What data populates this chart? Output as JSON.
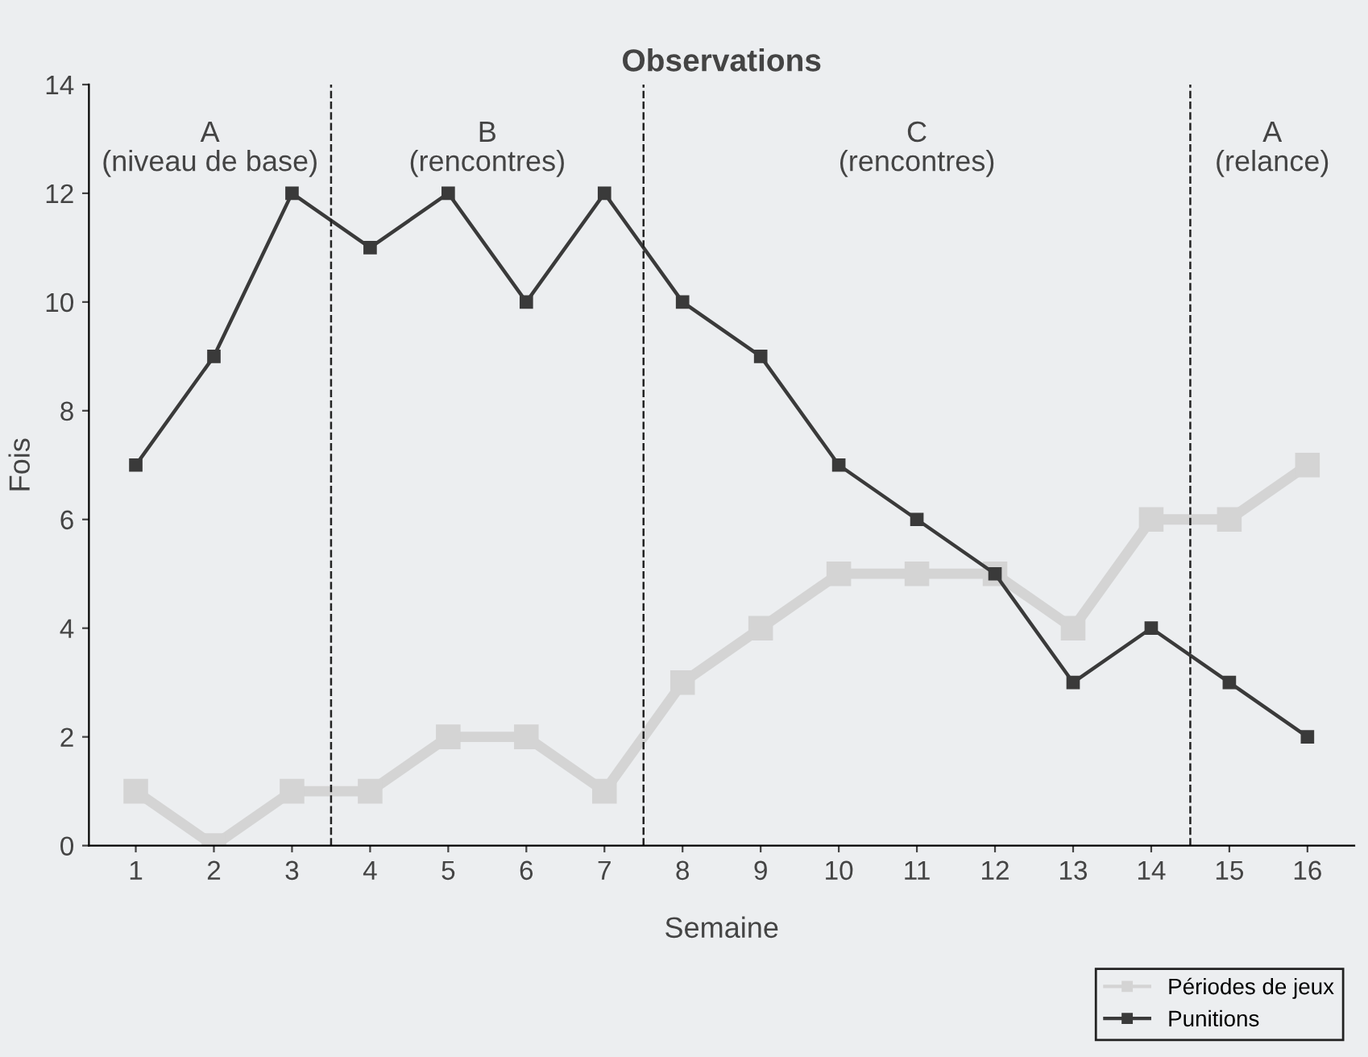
{
  "chart_data": {
    "type": "line",
    "title": "Observations",
    "xlabel": "Semaine",
    "ylabel": "Fois",
    "x": [
      1,
      2,
      3,
      4,
      5,
      6,
      7,
      8,
      9,
      10,
      11,
      12,
      13,
      14,
      15,
      16
    ],
    "series": [
      {
        "name": "Périodes de jeux",
        "color": "#d4d4d4",
        "values": [
          1,
          0,
          1,
          1,
          2,
          2,
          1,
          3,
          4,
          5,
          5,
          5,
          4,
          6,
          6,
          7
        ]
      },
      {
        "name": "Punitions",
        "color": "#3a3a3a",
        "values": [
          7,
          9,
          12,
          11,
          12,
          10,
          12,
          10,
          9,
          7,
          6,
          5,
          3,
          4,
          3,
          2
        ]
      }
    ],
    "xlim": [
      0.4,
      16.6
    ],
    "xticks": [
      1,
      2,
      3,
      4,
      5,
      6,
      7,
      8,
      9,
      10,
      11,
      12,
      13,
      14,
      15,
      16
    ],
    "ylim": [
      0,
      14
    ],
    "yticks": [
      0,
      2,
      4,
      6,
      8,
      10,
      12,
      14
    ],
    "ref_lines": [
      {
        "axis": "x",
        "value": 3.5,
        "color": "#222222",
        "line_style": "dashed"
      },
      {
        "axis": "x",
        "value": 7.5,
        "color": "#222222",
        "line_style": "dashed"
      },
      {
        "axis": "x",
        "value": 14.5,
        "color": "#222222",
        "line_style": "dashed"
      }
    ],
    "annotations": [
      "A\n(niveau de base)",
      "B\n(rencontres)",
      "C\n(rencontres)",
      "A\n(relance)"
    ],
    "marker": "square",
    "line_style": "solid",
    "grid": false,
    "legend": "bottom right"
  }
}
